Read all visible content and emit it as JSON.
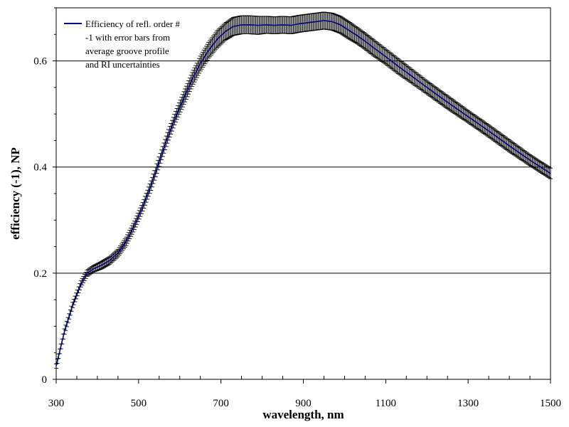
{
  "chart_data": {
    "type": "line",
    "title": "",
    "xlabel": "wavelength, nm",
    "ylabel": "efficiency (-1), NP",
    "xlim": [
      300,
      1500
    ],
    "ylim": [
      0,
      0.7
    ],
    "x_ticks": [
      300,
      500,
      700,
      900,
      1100,
      1300,
      1500
    ],
    "y_ticks": [
      0,
      0.2,
      0.4,
      0.6
    ],
    "y_tick_labels": [
      "0",
      "0.2",
      "0.4",
      "0.6"
    ],
    "grid": "horizontal major lines at 0.2, 0.4, 0.6",
    "legend_position": "top-left",
    "legend_lines": [
      "Efficiency of refl. order #",
      "-1 with error bars from",
      "average groove profile",
      "and RI uncertainties"
    ],
    "series": [
      {
        "name": "Efficiency of refl. order # -1 with error bars from average groove profile and RI uncertainties",
        "color": "#000080",
        "error_bar_color": "#000000",
        "x": [
          300,
          320,
          340,
          360,
          375,
          390,
          410,
          430,
          450,
          470,
          490,
          510,
          530,
          550,
          570,
          590,
          610,
          630,
          650,
          670,
          690,
          710,
          730,
          750,
          770,
          790,
          810,
          830,
          850,
          870,
          890,
          910,
          930,
          950,
          970,
          990,
          1010,
          1030,
          1050,
          1070,
          1100,
          1130,
          1160,
          1200,
          1250,
          1300,
          1350,
          1400,
          1450,
          1500
        ],
        "y": [
          0.025,
          0.09,
          0.14,
          0.18,
          0.2,
          0.208,
          0.215,
          0.224,
          0.238,
          0.26,
          0.29,
          0.325,
          0.365,
          0.41,
          0.455,
          0.495,
          0.53,
          0.565,
          0.595,
          0.62,
          0.64,
          0.655,
          0.665,
          0.668,
          0.668,
          0.667,
          0.668,
          0.667,
          0.668,
          0.667,
          0.67,
          0.672,
          0.674,
          0.676,
          0.674,
          0.668,
          0.658,
          0.648,
          0.637,
          0.625,
          0.608,
          0.59,
          0.573,
          0.55,
          0.522,
          0.495,
          0.468,
          0.44,
          0.413,
          0.388
        ],
        "error": [
          0.004,
          0.005,
          0.005,
          0.006,
          0.006,
          0.006,
          0.007,
          0.007,
          0.007,
          0.008,
          0.008,
          0.008,
          0.009,
          0.009,
          0.01,
          0.01,
          0.012,
          0.013,
          0.014,
          0.015,
          0.016,
          0.016,
          0.017,
          0.017,
          0.017,
          0.017,
          0.016,
          0.016,
          0.016,
          0.016,
          0.016,
          0.016,
          0.016,
          0.016,
          0.016,
          0.016,
          0.016,
          0.015,
          0.015,
          0.015,
          0.014,
          0.014,
          0.013,
          0.012,
          0.012,
          0.011,
          0.011,
          0.011,
          0.01,
          0.01
        ]
      }
    ]
  }
}
